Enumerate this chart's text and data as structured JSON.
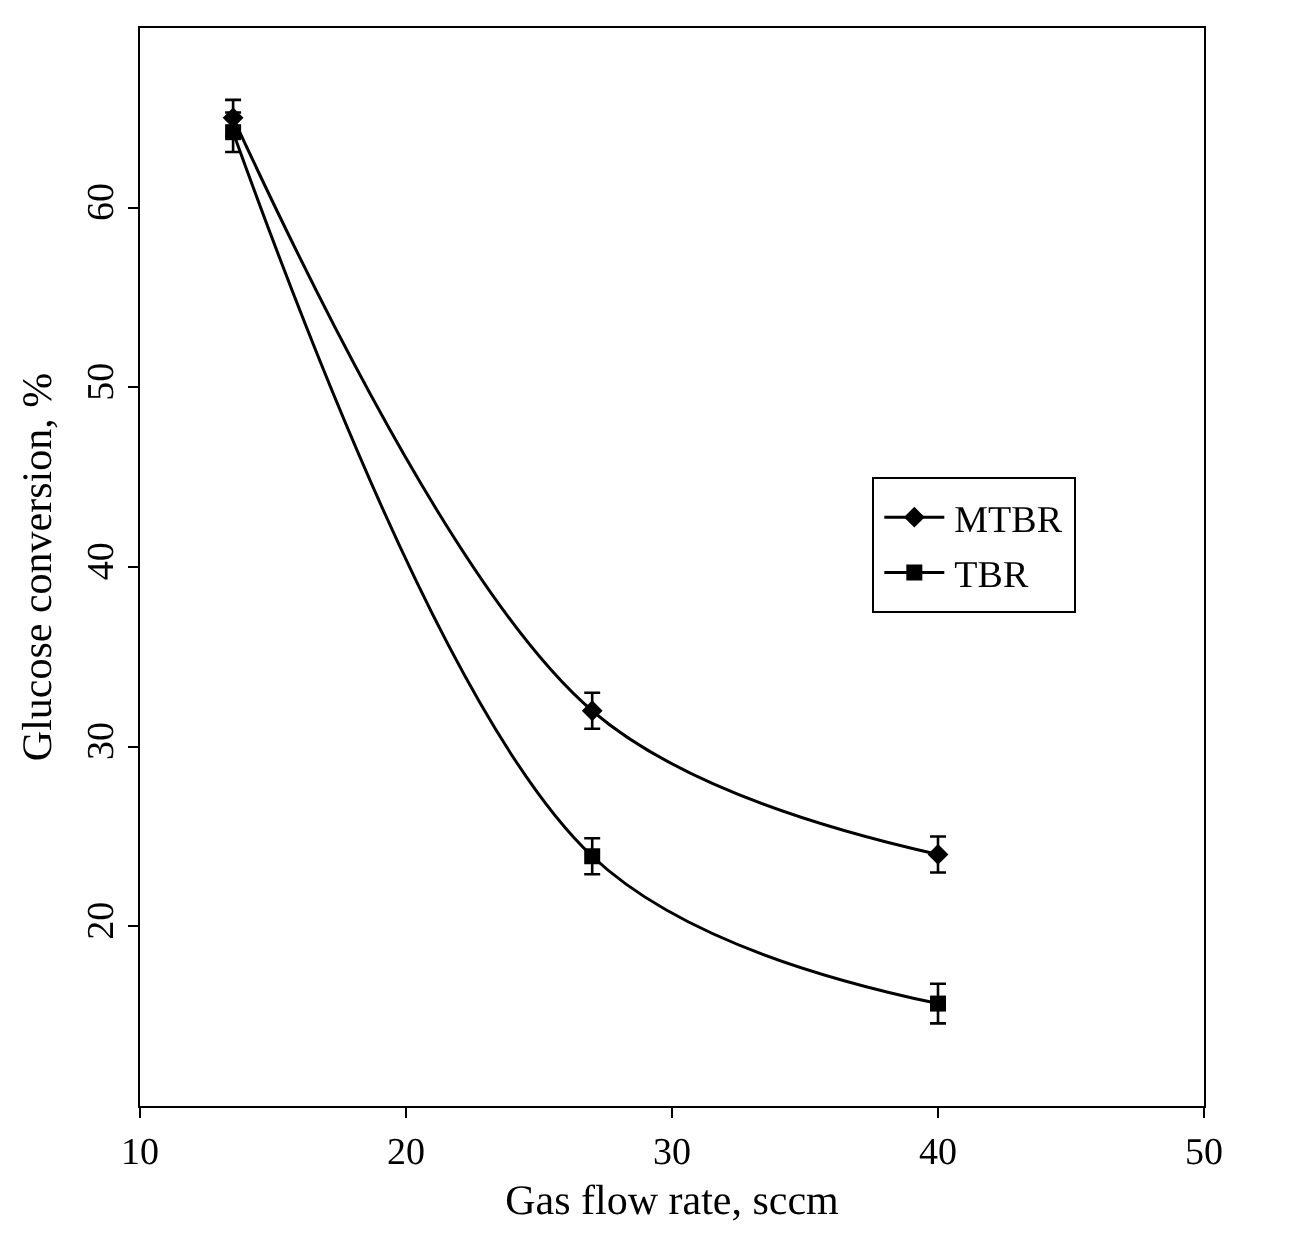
{
  "chart_data": {
    "type": "line",
    "xlabel": "Gas flow rate, sccm",
    "ylabel": "Glucose conversion, %",
    "x": [
      13.5,
      27,
      40
    ],
    "series": [
      {
        "name": "MTBR",
        "color": "#000000",
        "marker": "diamond",
        "values": [
          65,
          32,
          24
        ],
        "errors": [
          1,
          1,
          1
        ]
      },
      {
        "name": "TBR",
        "color": "#000000",
        "marker": "square",
        "values": [
          64.2,
          23.9,
          15.7
        ],
        "errors": [
          1.1,
          1,
          1.1
        ]
      }
    ],
    "xlim": [
      10,
      50
    ],
    "xticks": [
      10,
      20,
      30,
      40,
      50
    ],
    "ylim": [
      10,
      70
    ],
    "yticks": [
      20,
      30,
      40,
      50,
      60
    ],
    "legend": "right",
    "line_style": "solid"
  }
}
